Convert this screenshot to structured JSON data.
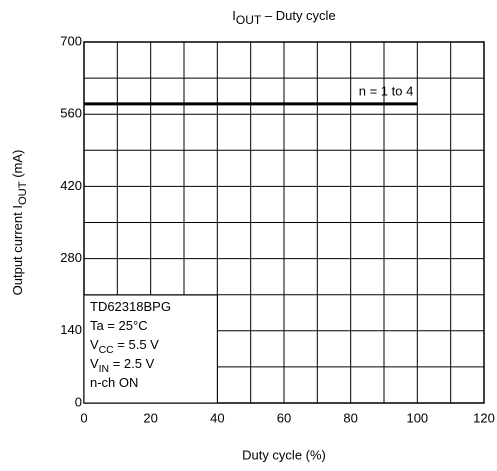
{
  "chart_data": {
    "type": "line",
    "title": {
      "text": "I",
      "sub": "OUT",
      "rest": " – Duty cycle"
    },
    "xlabel": "Duty cycle    (%)",
    "ylabel": {
      "text": "Output current   I",
      "sub": "OUT",
      "rest": "    (mA)"
    },
    "x": [
      0,
      100
    ],
    "series": [
      {
        "name": "n = 1 to 4",
        "color": "#000000",
        "values": [
          580,
          580
        ]
      }
    ],
    "xlim": [
      0,
      120
    ],
    "xticks": [
      0,
      20,
      40,
      60,
      80,
      100,
      120
    ],
    "xminor": [
      10,
      30,
      50,
      70,
      90,
      110
    ],
    "ylim": [
      0,
      700
    ],
    "yticks": [
      0,
      140,
      280,
      420,
      560,
      700
    ],
    "yminor": [
      70,
      210,
      350,
      490,
      630
    ],
    "grid": true,
    "conditions": [
      {
        "text": "TD62318BPG"
      },
      {
        "text": "Ta = 25°C"
      },
      {
        "text": "V",
        "sub": "CC",
        "rest": " = 5.5 V"
      },
      {
        "text": "V",
        "sub": "IN",
        "rest": " = 2.5 V"
      },
      {
        "text": "n-ch ON"
      }
    ]
  }
}
